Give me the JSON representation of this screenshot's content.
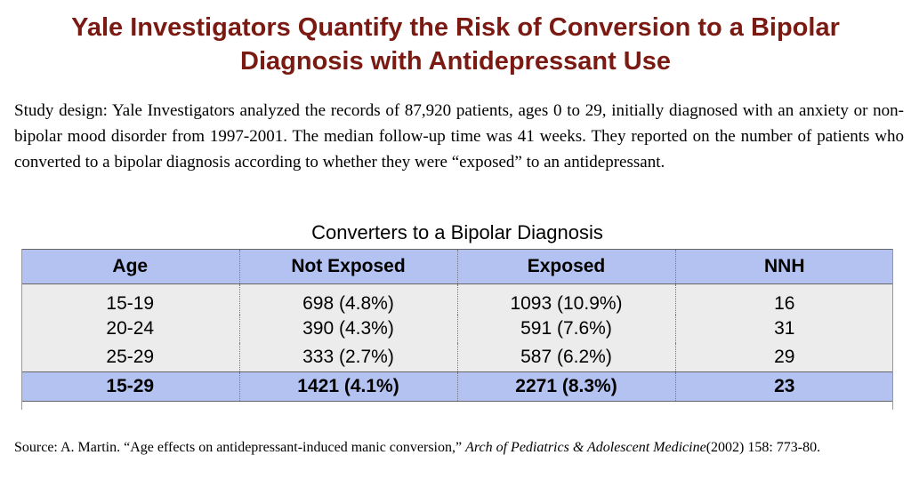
{
  "title": {
    "line1": "Yale Investigators Quantify the Risk of Conversion to a Bipolar",
    "line2": "Diagnosis with Antidepressant Use"
  },
  "study_design": "Study design: Yale Investigators analyzed the records of 87,920 patients, ages 0 to 29, initially diagnosed with an anxiety or non-bipolar mood disorder from 1997-2001. The median follow-up time was 41 weeks. They reported on the number of patients who converted to a bipolar diagnosis according to whether they were “exposed” to an antidepressant.",
  "table": {
    "caption": "Converters to a Bipolar Diagnosis",
    "headers": [
      "Age",
      "Not Exposed",
      "Exposed",
      "NNH"
    ],
    "rows": [
      [
        "15-19",
        "698 (4.8%)",
        "1093 (10.9%)",
        "16"
      ],
      [
        "20-24",
        "390 (4.3%)",
        "591 (7.6%)",
        "31"
      ],
      [
        "25-29",
        "333 (2.7%)",
        "587 (6.2%)",
        "29"
      ]
    ],
    "total": [
      "15-29",
      "1421 (4.1%)",
      "2271 (8.3%)",
      "23"
    ]
  },
  "source": {
    "prefix": "Source:  A. Martin. “Age effects on antidepressant-induced manic conversion,” ",
    "journal": "Arch of Pediatrics & Adolescent Medicine",
    "suffix": "(2002) 158: 773-80."
  },
  "colors": {
    "title": "#7b1a12",
    "header_fill": "#b3c2f0",
    "body_fill": "#ececec"
  }
}
